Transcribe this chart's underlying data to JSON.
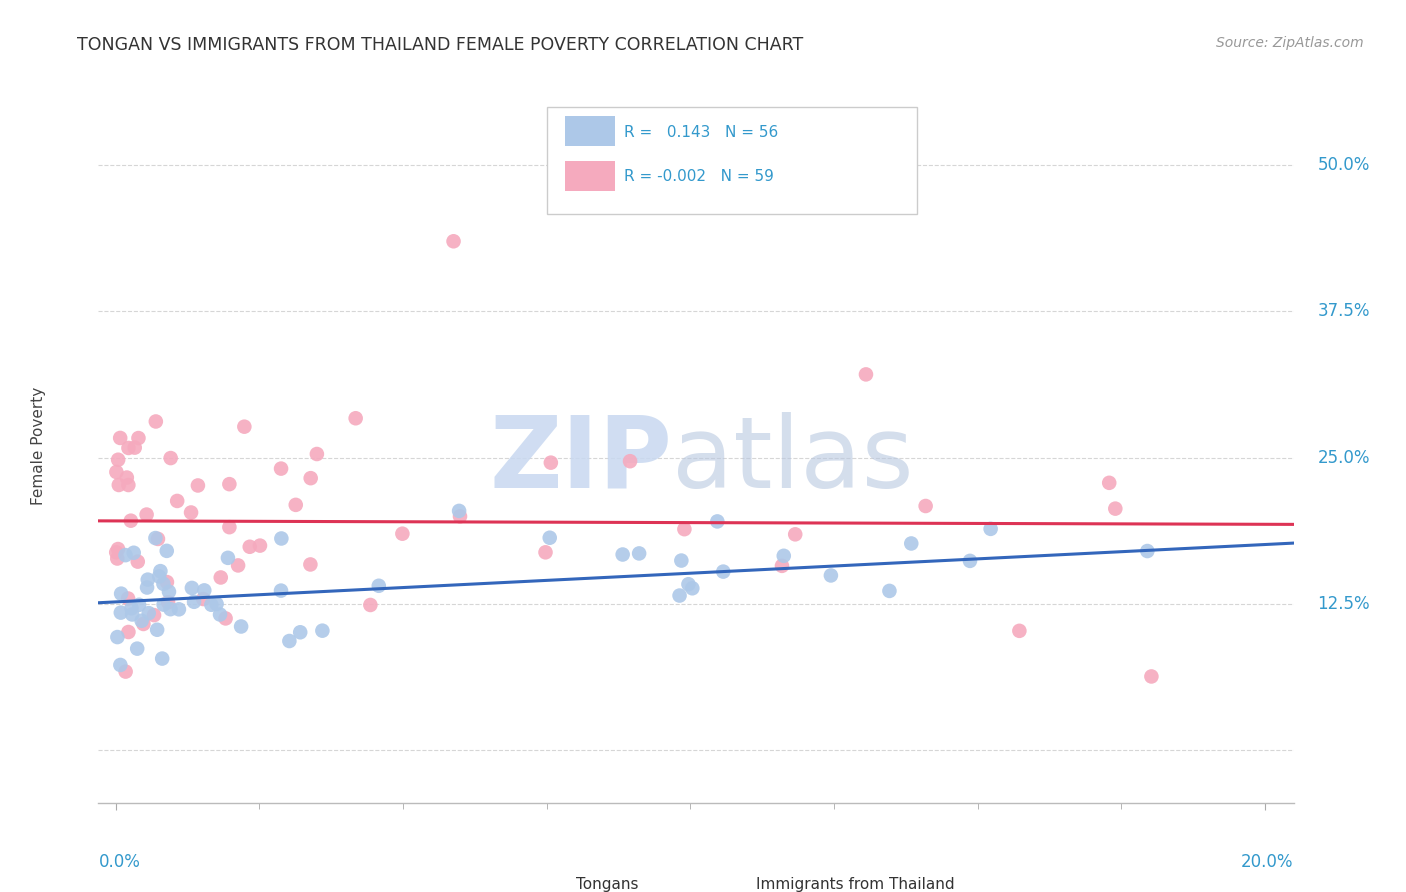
{
  "title": "TONGAN VS IMMIGRANTS FROM THAILAND FEMALE POVERTY CORRELATION CHART",
  "source": "Source: ZipAtlas.com",
  "ylabel": "Female Poverty",
  "ytick_vals": [
    0.0,
    0.125,
    0.25,
    0.375,
    0.5
  ],
  "ytick_labels": [
    "",
    "12.5%",
    "25.0%",
    "37.5%",
    "50.0%"
  ],
  "xlim": [
    -0.003,
    0.205
  ],
  "ylim": [
    -0.045,
    0.565
  ],
  "tongan_R": 0.143,
  "tongan_N": 56,
  "thailand_R": -0.002,
  "thailand_N": 59,
  "tongan_color": "#adc8e8",
  "thailand_color": "#f5aabe",
  "tongan_line_color": "#3366bb",
  "thailand_line_color": "#dd3355",
  "tongan_line_y0": 0.126,
  "tongan_line_y1": 0.177,
  "thailand_line_y0": 0.196,
  "thailand_line_y1": 0.193,
  "grid_color": "#cccccc",
  "grid_style": "--",
  "watermark_zip_color": "#c8d8f0",
  "watermark_atlas_color": "#b8c8e0"
}
